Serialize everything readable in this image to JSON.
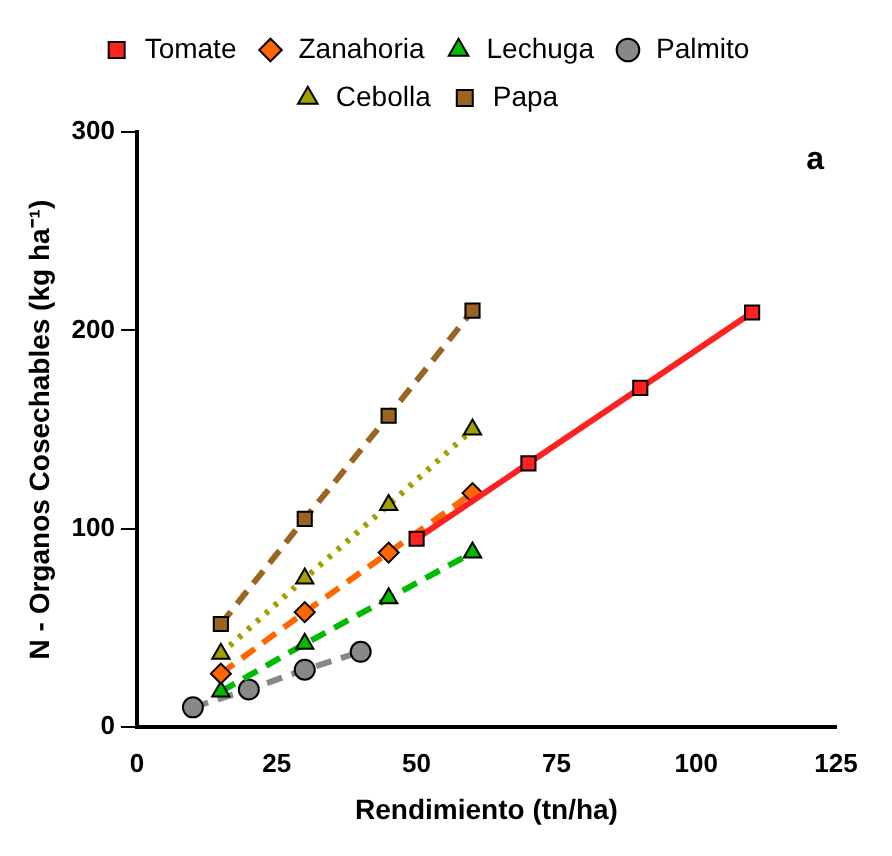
{
  "chart_data": {
    "type": "line",
    "xlabel": "Rendimiento (tn/ha)",
    "ylabel": "N - Organos Cosechables (kg ha⁻¹)",
    "annotations": [
      "a"
    ],
    "xlim": [
      0,
      125
    ],
    "xticks": [
      0,
      25,
      50,
      75,
      100,
      125
    ],
    "ylim": [
      0,
      300
    ],
    "yticks": [
      0,
      100,
      200,
      300
    ],
    "grid": false,
    "legend": "top",
    "series": [
      {
        "name": "Tomate",
        "color": "#ff2020",
        "marker": "square",
        "line_style": "solid",
        "x": [
          50,
          70,
          90,
          110
        ],
        "values": [
          95,
          133,
          171,
          209
        ]
      },
      {
        "name": "Zanahoria",
        "color": "#ff6600",
        "marker": "diamond",
        "line_style": "dashed",
        "x": [
          15,
          30,
          45,
          60
        ],
        "values": [
          27,
          58,
          88,
          118
        ]
      },
      {
        "name": "Lechuga",
        "color": "#00bb00",
        "marker": "triangle",
        "line_style": "dashed",
        "x": [
          15,
          30,
          45,
          60
        ],
        "values": [
          18,
          42,
          65,
          88
        ]
      },
      {
        "name": "Palmito",
        "color": "#888888",
        "marker": "circle",
        "line_style": "dashed",
        "x": [
          10,
          20,
          30,
          40
        ],
        "values": [
          10,
          19,
          29,
          38
        ]
      },
      {
        "name": "Cebolla",
        "color": "#a0a000",
        "marker": "triangle",
        "line_style": "dotted",
        "x": [
          15,
          30,
          45,
          60
        ],
        "values": [
          37,
          75,
          112,
          150
        ]
      },
      {
        "name": "Papa",
        "color": "#996622",
        "marker": "square",
        "line_style": "dashed",
        "x": [
          15,
          30,
          45,
          60
        ],
        "values": [
          52,
          105,
          157,
          210
        ]
      }
    ]
  }
}
